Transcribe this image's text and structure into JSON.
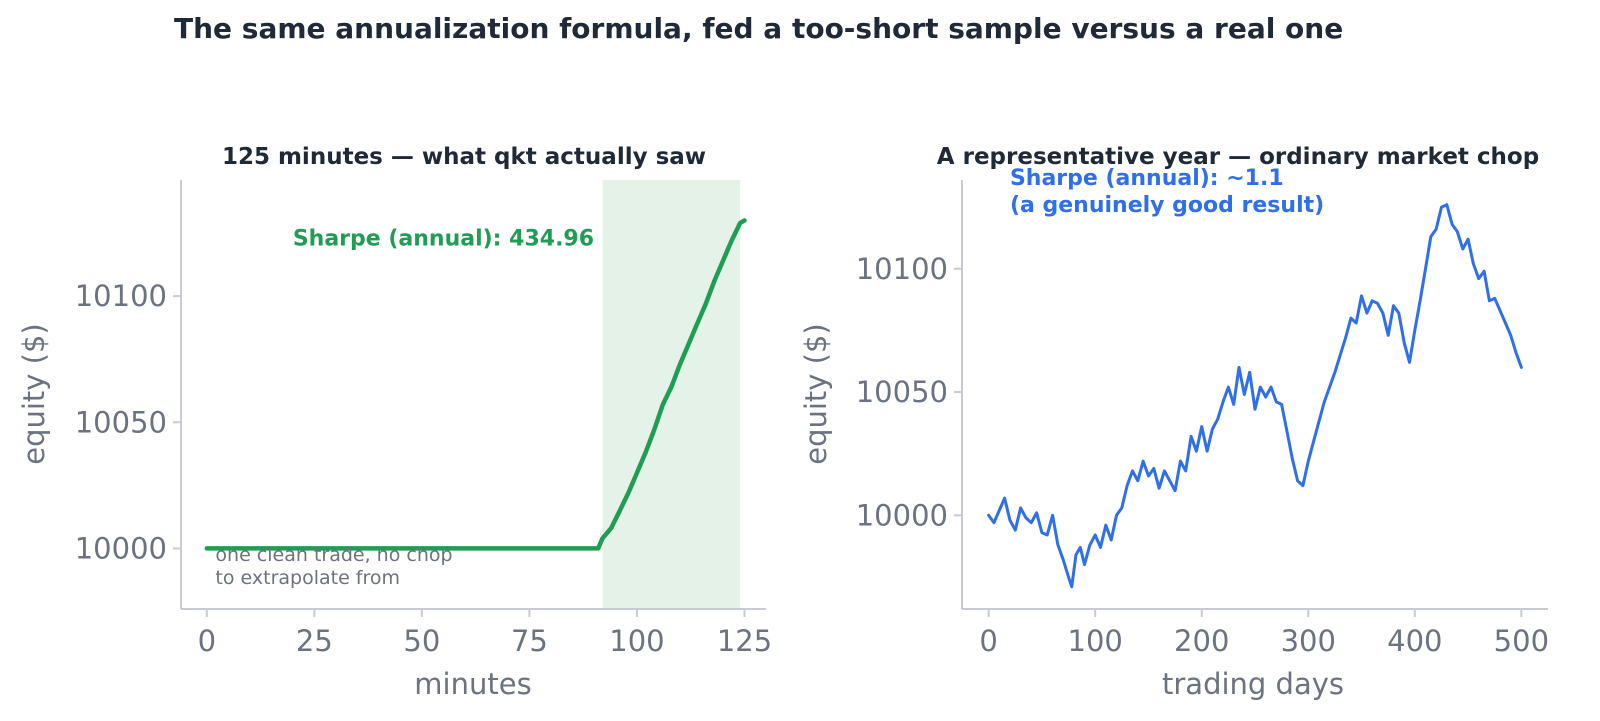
{
  "suptitle": "The same annualization formula, fed a too-short sample versus a real one",
  "colors": {
    "green": "#1f9d55",
    "blue": "#2f6fe9",
    "shade": "#e4f2e8",
    "axis": "#c8ccd2",
    "tick_text": "#6b7280",
    "title_text": "#1f2937",
    "note_text": "#6b7280"
  },
  "chart_data": [
    {
      "type": "line",
      "title": "125 minutes — what qkt actually saw",
      "xlabel": "minutes",
      "ylabel": "equity ($)",
      "xlim": [
        -6,
        130
      ],
      "ylim": [
        9976,
        10146
      ],
      "xticks": [
        0,
        25,
        50,
        75,
        100,
        125
      ],
      "yticks": [
        10000,
        10050,
        10100
      ],
      "shaded_region": {
        "x_from": 92,
        "x_to": 124
      },
      "series": [
        {
          "x": [
            0,
            91,
            92,
            94,
            96,
            98,
            100,
            102,
            104,
            106,
            108,
            110,
            112,
            114,
            116,
            118,
            120,
            122,
            124,
            125
          ],
          "y": [
            10000,
            10000,
            10004,
            10008,
            10015,
            10022,
            10030,
            10038,
            10047,
            10057,
            10064,
            10073,
            10081,
            10089,
            10097,
            10106,
            10114,
            10122,
            10129,
            10130
          ]
        }
      ],
      "annotations": [
        {
          "text": "Sharpe (annual): 434.96",
          "x": 20,
          "y": 10120,
          "style": "bold-green"
        },
        {
          "text": "one clean trade, no chop",
          "x": 2,
          "y": 9995,
          "style": "note"
        },
        {
          "text": "to extrapolate from",
          "x": 2,
          "y": 9986,
          "style": "note"
        }
      ]
    },
    {
      "type": "line",
      "title": "A representative year — ordinary market chop",
      "xlabel": "trading days",
      "ylabel": "equity ($)",
      "xlim": [
        -25,
        525
      ],
      "ylim": [
        9962,
        10136
      ],
      "xticks": [
        0,
        100,
        200,
        300,
        400,
        500
      ],
      "yticks": [
        10000,
        10050,
        10100
      ],
      "series": [
        {
          "x": [
            0,
            5,
            10,
            15,
            20,
            25,
            30,
            35,
            40,
            45,
            50,
            55,
            60,
            65,
            70,
            75,
            78,
            82,
            86,
            90,
            95,
            100,
            105,
            110,
            115,
            120,
            125,
            130,
            135,
            140,
            145,
            150,
            155,
            160,
            165,
            170,
            175,
            180,
            185,
            190,
            195,
            200,
            205,
            210,
            215,
            220,
            225,
            230,
            235,
            240,
            245,
            250,
            255,
            260,
            265,
            270,
            275,
            280,
            285,
            290,
            295,
            300,
            305,
            310,
            315,
            320,
            325,
            330,
            335,
            340,
            345,
            350,
            355,
            360,
            365,
            370,
            375,
            380,
            385,
            390,
            395,
            400,
            405,
            410,
            415,
            420,
            425,
            430,
            435,
            440,
            445,
            450,
            455,
            460,
            465,
            470,
            475,
            480,
            485,
            490,
            495,
            500
          ],
          "y": [
            10000,
            9997,
            10002,
            10007,
            9998,
            9994,
            10003,
            9999,
            9997,
            10001,
            9993,
            9992,
            10000,
            9988,
            9982,
            9975,
            9971,
            9984,
            9987,
            9980,
            9988,
            9992,
            9987,
            9996,
            9990,
            10000,
            10003,
            10012,
            10018,
            10014,
            10022,
            10016,
            10019,
            10011,
            10018,
            10014,
            10010,
            10022,
            10018,
            10032,
            10026,
            10036,
            10026,
            10035,
            10039,
            10046,
            10052,
            10045,
            10060,
            10049,
            10058,
            10043,
            10052,
            10048,
            10052,
            10046,
            10045,
            10034,
            10023,
            10014,
            10012,
            10022,
            10030,
            10038,
            10046,
            10052,
            10058,
            10065,
            10072,
            10080,
            10078,
            10089,
            10082,
            10087,
            10086,
            10082,
            10073,
            10085,
            10082,
            10070,
            10062,
            10075,
            10087,
            10100,
            10113,
            10116,
            10125,
            10126,
            10118,
            10115,
            10108,
            10112,
            10102,
            10096,
            10099,
            10087,
            10088,
            10083,
            10078,
            10073,
            10066,
            10060
          ]
        }
      ],
      "annotations": [
        {
          "text": "Sharpe (annual): ~1.1",
          "x": 20,
          "y": 10134,
          "style": "bold-blue"
        },
        {
          "text": "(a genuinely good result)",
          "x": 20,
          "y": 10123,
          "style": "bold-blue"
        }
      ]
    }
  ]
}
